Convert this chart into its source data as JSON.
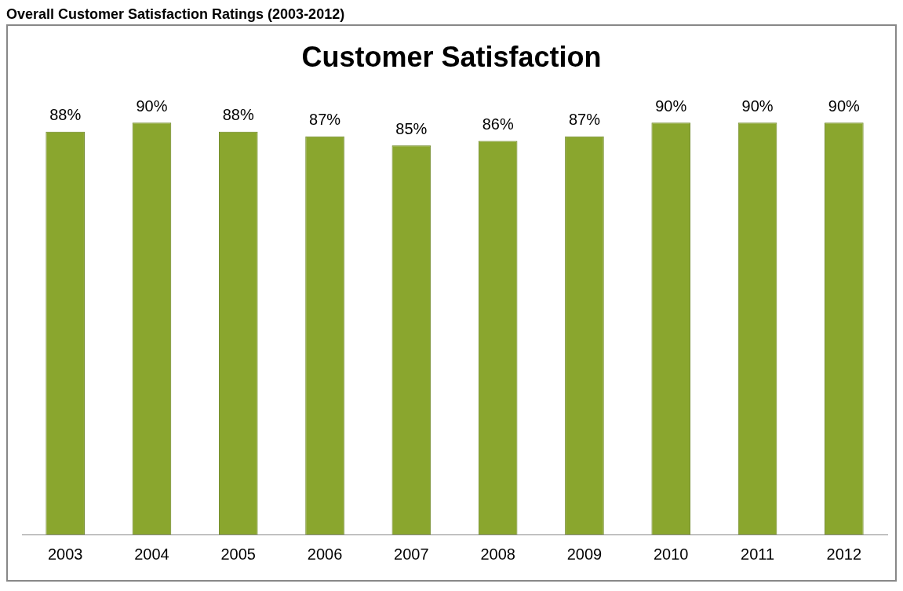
{
  "chart_data": {
    "type": "bar",
    "title": "Customer Satisfaction",
    "annotations": [
      "Overall Customer Satisfaction Ratings (2003-2012)"
    ],
    "categories": [
      "2003",
      "2004",
      "2005",
      "2006",
      "2007",
      "2008",
      "2009",
      "2010",
      "2011",
      "2012"
    ],
    "values": [
      88,
      90,
      88,
      87,
      85,
      86,
      87,
      90,
      90,
      90
    ],
    "value_labels": [
      "88%",
      "90%",
      "88%",
      "87%",
      "85%",
      "86%",
      "87%",
      "90%",
      "90%",
      "90%"
    ],
    "color": "#8aa62e",
    "tick_labels": "x",
    "grid": false,
    "legend": false
  }
}
